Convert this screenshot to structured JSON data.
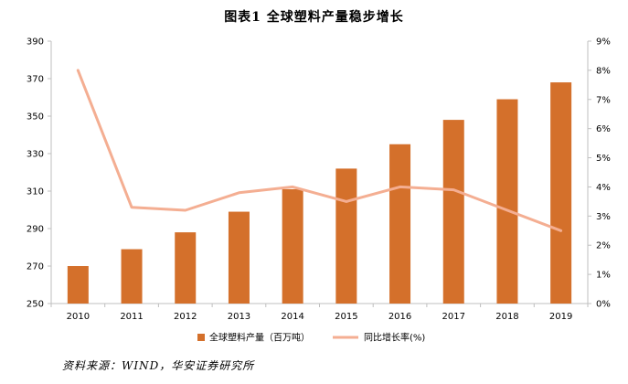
{
  "title": "图表1 全球塑料产量稳步增长",
  "source": "资料来源：WIND，华安证券研究所",
  "colors": {
    "bar": "#D4702B",
    "line": "#F4AE92",
    "axis": "#BFBFBF"
  },
  "chart_data": {
    "type": "bar",
    "title": "图表1 全球塑料产量稳步增长",
    "categories": [
      "2010",
      "2011",
      "2012",
      "2013",
      "2014",
      "2015",
      "2016",
      "2017",
      "2018",
      "2019"
    ],
    "series": [
      {
        "name": "全球塑料产量（百万吨）",
        "type": "bar",
        "axis": "left",
        "values": [
          270,
          279,
          288,
          299,
          311,
          322,
          335,
          348,
          359,
          368
        ]
      },
      {
        "name": "同比增长率(%)",
        "type": "line",
        "axis": "right",
        "values": [
          8.0,
          3.3,
          3.2,
          3.8,
          4.0,
          3.5,
          4.0,
          3.9,
          3.2,
          2.5
        ]
      }
    ],
    "y_left": {
      "min": 250,
      "max": 390,
      "ticks": [
        "250",
        "270",
        "290",
        "310",
        "330",
        "350",
        "370",
        "390"
      ]
    },
    "y_right": {
      "min": 0,
      "max": 9,
      "ticks": [
        "0%",
        "1%",
        "2%",
        "3%",
        "4%",
        "5%",
        "6%",
        "7%",
        "8%",
        "9%"
      ]
    },
    "grid": false,
    "legend_position": "bottom"
  }
}
